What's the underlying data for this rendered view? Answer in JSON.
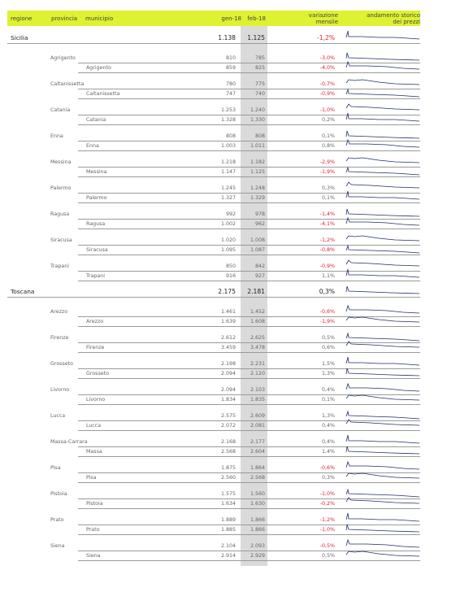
{
  "header": {
    "regione": "regione",
    "provincia": "provincia",
    "municipio": "municipio",
    "gen": "gen-18",
    "feb": "feb-18",
    "variazione_l1": "variazione",
    "variazione_l2": "mensile",
    "andamento_l1": "andamento storico",
    "andamento_l2": "dei prezzi"
  },
  "colors": {
    "header_bg": "#ddf230",
    "negative": "#e0202e",
    "sparkline": "#1f2e6b",
    "shade": "#dadada"
  },
  "rows": [
    {
      "type": "region",
      "regione": "Sicilia",
      "gen": "1.138",
      "feb": "1.125",
      "var": "-1,2%",
      "neg": true
    },
    {
      "type": "prov",
      "provincia": "Agrigento",
      "gen": "810",
      "feb": "785",
      "var": "-3,0%",
      "neg": true
    },
    {
      "type": "city",
      "municipio": "Agrigento",
      "gen": "859",
      "feb": "825",
      "var": "-4,0%",
      "neg": true
    },
    {
      "type": "prov",
      "provincia": "Caltanissetta",
      "gen": "780",
      "feb": "775",
      "var": "-0,7%",
      "neg": true
    },
    {
      "type": "city",
      "municipio": "Caltanissetta",
      "gen": "747",
      "feb": "740",
      "var": "-0,9%",
      "neg": true
    },
    {
      "type": "prov",
      "provincia": "Catania",
      "gen": "1.253",
      "feb": "1.240",
      "var": "-1,0%",
      "neg": true
    },
    {
      "type": "city",
      "municipio": "Catania",
      "gen": "1.328",
      "feb": "1.330",
      "var": "0,2%",
      "neg": false
    },
    {
      "type": "prov",
      "provincia": "Enna",
      "gen": "808",
      "feb": "808",
      "var": "0,1%",
      "neg": false
    },
    {
      "type": "city",
      "municipio": "Enna",
      "gen": "1.003",
      "feb": "1.011",
      "var": "0,8%",
      "neg": false
    },
    {
      "type": "prov",
      "provincia": "Messina",
      "gen": "1.218",
      "feb": "1.182",
      "var": "-2,9%",
      "neg": true
    },
    {
      "type": "city",
      "municipio": "Messina",
      "gen": "1.147",
      "feb": "1.125",
      "var": "-1,9%",
      "neg": true
    },
    {
      "type": "prov",
      "provincia": "Palermo",
      "gen": "1.245",
      "feb": "1.248",
      "var": "0,3%",
      "neg": false
    },
    {
      "type": "city",
      "municipio": "Palermo",
      "gen": "1.327",
      "feb": "1.329",
      "var": "0,1%",
      "neg": false
    },
    {
      "type": "prov",
      "provincia": "Ragusa",
      "gen": "992",
      "feb": "978",
      "var": "-1,4%",
      "neg": true
    },
    {
      "type": "city",
      "municipio": "Ragusa",
      "gen": "1.002",
      "feb": "962",
      "var": "-4,1%",
      "neg": true
    },
    {
      "type": "prov",
      "provincia": "Siracusa",
      "gen": "1.020",
      "feb": "1.008",
      "var": "-1,2%",
      "neg": true
    },
    {
      "type": "city",
      "municipio": "Siracusa",
      "gen": "1.095",
      "feb": "1.087",
      "var": "-0,8%",
      "neg": true
    },
    {
      "type": "prov",
      "provincia": "Trapani",
      "gen": "850",
      "feb": "842",
      "var": "-0,9%",
      "neg": true
    },
    {
      "type": "city",
      "municipio": "Trapani",
      "gen": "916",
      "feb": "927",
      "var": "1,1%",
      "neg": false
    },
    {
      "type": "region",
      "regione": "Toscana",
      "gen": "2.175",
      "feb": "2.181",
      "var": "0,3%",
      "neg": false
    },
    {
      "type": "prov",
      "provincia": "Arezzo",
      "gen": "1.461",
      "feb": "1.452",
      "var": "-0,6%",
      "neg": true
    },
    {
      "type": "city",
      "municipio": "Arezzo",
      "gen": "1.639",
      "feb": "1.608",
      "var": "-1,9%",
      "neg": true
    },
    {
      "type": "prov",
      "provincia": "Firenze",
      "gen": "2.612",
      "feb": "2.625",
      "var": "0,5%",
      "neg": false
    },
    {
      "type": "city",
      "municipio": "Firenze",
      "gen": "3.459",
      "feb": "3.478",
      "var": "0,6%",
      "neg": false
    },
    {
      "type": "prov",
      "provincia": "Grosseto",
      "gen": "2.198",
      "feb": "2.231",
      "var": "1,5%",
      "neg": false
    },
    {
      "type": "city",
      "municipio": "Grosseto",
      "gen": "2.094",
      "feb": "2.120",
      "var": "1,3%",
      "neg": false
    },
    {
      "type": "prov",
      "provincia": "Livorno",
      "gen": "2.094",
      "feb": "2.103",
      "var": "0,4%",
      "neg": false
    },
    {
      "type": "city",
      "municipio": "Livorno",
      "gen": "1.834",
      "feb": "1.835",
      "var": "0,1%",
      "neg": false
    },
    {
      "type": "prov",
      "provincia": "Lucca",
      "gen": "2.575",
      "feb": "2.609",
      "var": "1,3%",
      "neg": false
    },
    {
      "type": "city",
      "municipio": "Lucca",
      "gen": "2.072",
      "feb": "2.081",
      "var": "0,4%",
      "neg": false
    },
    {
      "type": "prov",
      "provincia": "Massa-Carrara",
      "gen": "2.168",
      "feb": "2.177",
      "var": "0,4%",
      "neg": false
    },
    {
      "type": "city",
      "municipio": "Massa",
      "gen": "2.568",
      "feb": "2.604",
      "var": "1,4%",
      "neg": false
    },
    {
      "type": "prov",
      "provincia": "Pisa",
      "gen": "1.875",
      "feb": "1.864",
      "var": "-0,6%",
      "neg": true
    },
    {
      "type": "city",
      "municipio": "Pisa",
      "gen": "2.560",
      "feb": "2.568",
      "var": "0,3%",
      "neg": false
    },
    {
      "type": "prov",
      "provincia": "Pistoia",
      "gen": "1.575",
      "feb": "1.560",
      "var": "-1,0%",
      "neg": true
    },
    {
      "type": "city",
      "municipio": "Pistoia",
      "gen": "1.634",
      "feb": "1.630",
      "var": "-0,2%",
      "neg": true
    },
    {
      "type": "prov",
      "provincia": "Prato",
      "gen": "1.889",
      "feb": "1.866",
      "var": "-1,2%",
      "neg": true
    },
    {
      "type": "city",
      "municipio": "Prato",
      "gen": "1.885",
      "feb": "1.866",
      "var": "-1,0%",
      "neg": true
    },
    {
      "type": "prov",
      "provincia": "Siena",
      "gen": "2.104",
      "feb": "2.093",
      "var": "-0,5%",
      "neg": true
    },
    {
      "type": "city",
      "municipio": "Siena",
      "gen": "2.914",
      "feb": "2.929",
      "var": "0,5%",
      "neg": false
    }
  ]
}
